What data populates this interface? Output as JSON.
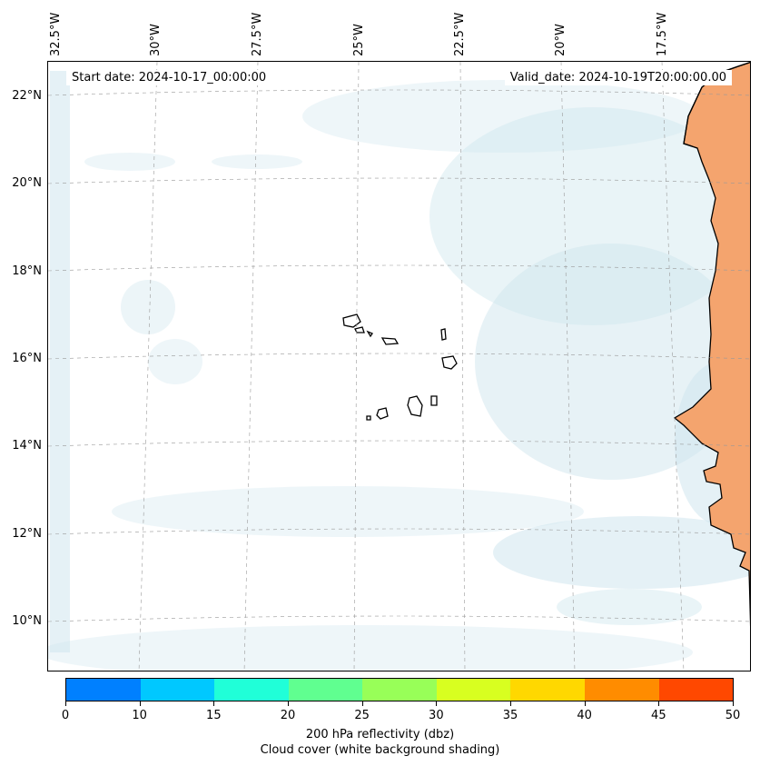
{
  "map": {
    "start_date": "Start date: 2024-10-17_00:00:00",
    "valid_date": "Valid_date: 2024-10-19T20:00:00.00",
    "lon_labels": [
      "32.5°W",
      "30°W",
      "27.5°W",
      "25°W",
      "22.5°W",
      "20°W",
      "17.5°W"
    ],
    "lat_labels": [
      "22°N",
      "20°N",
      "18°N",
      "16°N",
      "14°N",
      "12°N",
      "10°N"
    ],
    "grid": true,
    "land_color": "#f4a46e",
    "cloud_color": "#cfe6ee"
  },
  "colorbar": {
    "ticks": [
      "0",
      "10",
      "15",
      "20",
      "25",
      "30",
      "35",
      "40",
      "45",
      "50"
    ],
    "colors": [
      "#0080ff",
      "#00c8ff",
      "#20ffd8",
      "#60ff90",
      "#98ff58",
      "#d8ff20",
      "#ffd800",
      "#ff8c00",
      "#ff4800"
    ],
    "label": "200 hPa reflectivity (dbz)",
    "sublabel": "Cloud cover (white background shading)"
  }
}
